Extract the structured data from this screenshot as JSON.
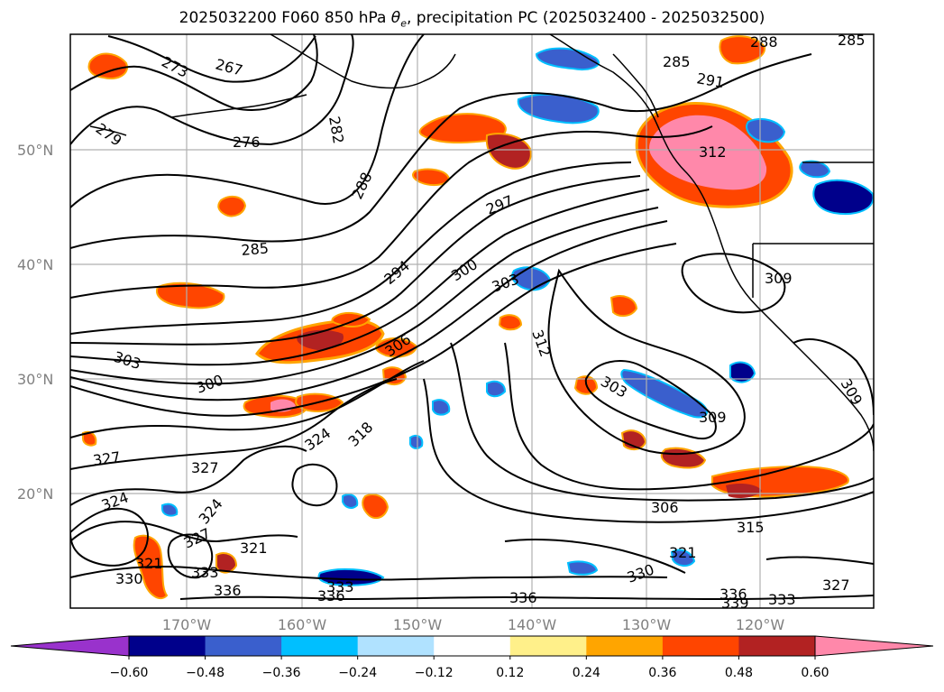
{
  "title": "2025032200 F060 850 hPa θe, precipitation PC (2025032400 - 2025032500)",
  "map": {
    "lat_labels": [
      "50°N",
      "40°N",
      "30°N",
      "20°N"
    ],
    "lon_labels": [
      "170°W",
      "160°W",
      "150°W",
      "140°W",
      "130°W",
      "120°W"
    ],
    "gridline_color": "#b0b0b0",
    "label_color": "#808080"
  },
  "colorbar": {
    "ticks": [
      "−0.60",
      "−0.48",
      "−0.36",
      "−0.24",
      "−0.12",
      "0.12",
      "0.24",
      "0.36",
      "0.48",
      "0.60"
    ],
    "colors": [
      "#9932cc",
      "#00008b",
      "#3a5fcd",
      "#00bfff",
      "#b0e2ff",
      "#ffffff",
      "#fff08a",
      "#ffa500",
      "#ff4500",
      "#b22222",
      "#ff88aa"
    ],
    "extend": "both"
  },
  "contour_labels": [
    "273",
    "267",
    "279",
    "276",
    "282",
    "288",
    "285",
    "297",
    "294",
    "300",
    "303",
    "306",
    "303",
    "300",
    "312",
    "309",
    "303",
    "309",
    "318",
    "324",
    "327",
    "327",
    "324",
    "324",
    "327",
    "321",
    "321",
    "333",
    "336",
    "333",
    "336",
    "336",
    "330",
    "321",
    "306",
    "315",
    "330",
    "336",
    "339",
    "333",
    "327",
    "285",
    "288",
    "291",
    "285",
    "312",
    "309"
  ]
}
